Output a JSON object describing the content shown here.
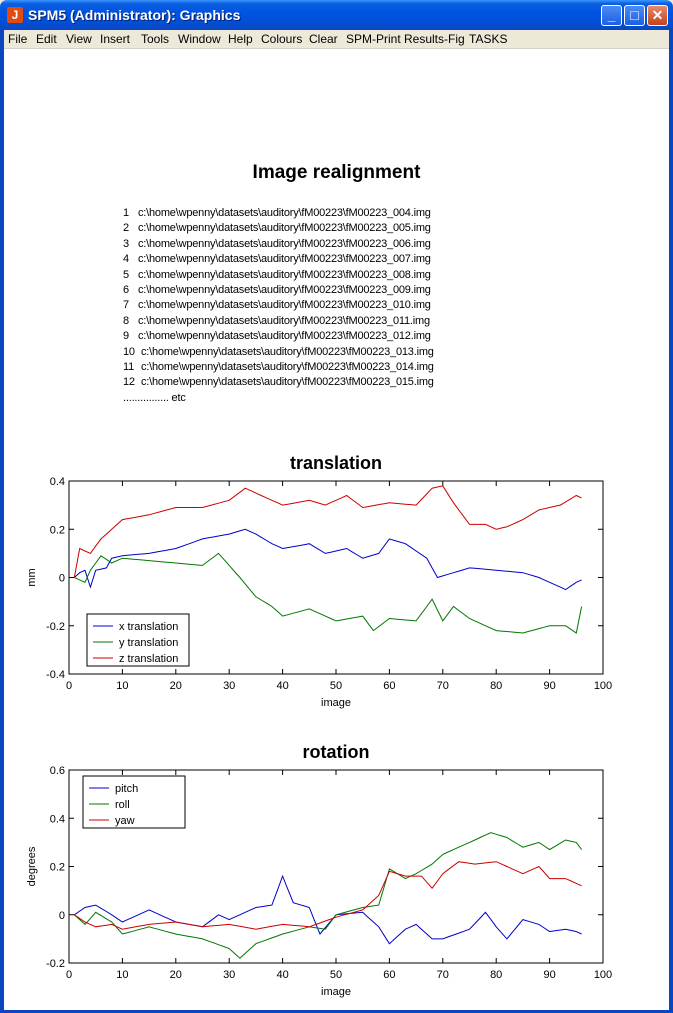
{
  "window": {
    "title": "SPM5 (Administrator): Graphics"
  },
  "menu": [
    "File",
    "Edit",
    "View",
    "Insert",
    "Tools",
    "Window",
    "Help",
    "Colours",
    "Clear",
    "SPM-Print",
    "Results-Fig",
    "TASKS"
  ],
  "page_title": "Image realignment",
  "files": [
    {
      "n": "1",
      "path": "c:\\home\\wpenny\\datasets\\auditory\\fM00223\\fM00223_004.img"
    },
    {
      "n": "2",
      "path": "c:\\home\\wpenny\\datasets\\auditory\\fM00223\\fM00223_005.img"
    },
    {
      "n": "3",
      "path": "c:\\home\\wpenny\\datasets\\auditory\\fM00223\\fM00223_006.img"
    },
    {
      "n": "4",
      "path": "c:\\home\\wpenny\\datasets\\auditory\\fM00223\\fM00223_007.img"
    },
    {
      "n": "5",
      "path": "c:\\home\\wpenny\\datasets\\auditory\\fM00223\\fM00223_008.img"
    },
    {
      "n": "6",
      "path": "c:\\home\\wpenny\\datasets\\auditory\\fM00223\\fM00223_009.img"
    },
    {
      "n": "7",
      "path": "c:\\home\\wpenny\\datasets\\auditory\\fM00223\\fM00223_010.img"
    },
    {
      "n": "8",
      "path": "c:\\home\\wpenny\\datasets\\auditory\\fM00223\\fM00223_011.img"
    },
    {
      "n": "9",
      "path": "c:\\home\\wpenny\\datasets\\auditory\\fM00223\\fM00223_012.img"
    },
    {
      "n": "10",
      "path": "c:\\home\\wpenny\\datasets\\auditory\\fM00223\\fM00223_013.img"
    },
    {
      "n": "11",
      "path": "c:\\home\\wpenny\\datasets\\auditory\\fM00223\\fM00223_014.img"
    },
    {
      "n": "12",
      "path": "c:\\home\\wpenny\\datasets\\auditory\\fM00223\\fM00223_015.img"
    }
  ],
  "files_more": "................ etc",
  "colors": {
    "blue": "#0000cc",
    "green": "#007700",
    "red": "#cc0000"
  },
  "chart_data": [
    {
      "type": "line",
      "title": "translation",
      "xlabel": "image",
      "ylabel": "mm",
      "xlim": [
        0,
        100
      ],
      "ylim": [
        -0.4,
        0.4
      ],
      "xticks": [
        0,
        10,
        20,
        30,
        40,
        50,
        60,
        70,
        80,
        90,
        100
      ],
      "yticks": [
        -0.4,
        -0.2,
        0,
        0.2,
        0.4
      ],
      "legend_position": "bottom-left",
      "series": [
        {
          "name": "x translation",
          "color": "#0000cc",
          "keypoints": [
            [
              1,
              0
            ],
            [
              2,
              0.02
            ],
            [
              3,
              0.03
            ],
            [
              4,
              -0.04
            ],
            [
              5,
              0.03
            ],
            [
              7,
              0.04
            ],
            [
              8,
              0.08
            ],
            [
              10,
              0.09
            ],
            [
              15,
              0.1
            ],
            [
              20,
              0.12
            ],
            [
              25,
              0.16
            ],
            [
              30,
              0.18
            ],
            [
              33,
              0.2
            ],
            [
              35,
              0.18
            ],
            [
              38,
              0.14
            ],
            [
              40,
              0.12
            ],
            [
              45,
              0.14
            ],
            [
              48,
              0.1
            ],
            [
              52,
              0.12
            ],
            [
              55,
              0.08
            ],
            [
              58,
              0.1
            ],
            [
              60,
              0.16
            ],
            [
              63,
              0.14
            ],
            [
              67,
              0.08
            ],
            [
              69,
              0.0
            ],
            [
              72,
              0.02
            ],
            [
              75,
              0.04
            ],
            [
              80,
              0.03
            ],
            [
              85,
              0.02
            ],
            [
              88,
              0.0
            ],
            [
              93,
              -0.05
            ],
            [
              95,
              -0.02
            ],
            [
              96,
              -0.01
            ]
          ]
        },
        {
          "name": "y translation",
          "color": "#007700",
          "keypoints": [
            [
              1,
              0
            ],
            [
              3,
              -0.02
            ],
            [
              4,
              0.03
            ],
            [
              6,
              0.09
            ],
            [
              8,
              0.06
            ],
            [
              10,
              0.08
            ],
            [
              15,
              0.07
            ],
            [
              20,
              0.06
            ],
            [
              25,
              0.05
            ],
            [
              28,
              0.1
            ],
            [
              30,
              0.05
            ],
            [
              32,
              0.0
            ],
            [
              35,
              -0.08
            ],
            [
              38,
              -0.12
            ],
            [
              40,
              -0.16
            ],
            [
              45,
              -0.13
            ],
            [
              50,
              -0.18
            ],
            [
              55,
              -0.16
            ],
            [
              57,
              -0.22
            ],
            [
              60,
              -0.17
            ],
            [
              65,
              -0.18
            ],
            [
              68,
              -0.09
            ],
            [
              70,
              -0.18
            ],
            [
              72,
              -0.12
            ],
            [
              75,
              -0.17
            ],
            [
              80,
              -0.22
            ],
            [
              85,
              -0.23
            ],
            [
              90,
              -0.2
            ],
            [
              93,
              -0.2
            ],
            [
              95,
              -0.23
            ],
            [
              96,
              -0.12
            ]
          ]
        },
        {
          "name": "z translation",
          "color": "#cc0000",
          "keypoints": [
            [
              1,
              0
            ],
            [
              2,
              0.12
            ],
            [
              4,
              0.1
            ],
            [
              6,
              0.16
            ],
            [
              8,
              0.2
            ],
            [
              10,
              0.24
            ],
            [
              15,
              0.26
            ],
            [
              20,
              0.29
            ],
            [
              25,
              0.29
            ],
            [
              30,
              0.32
            ],
            [
              33,
              0.37
            ],
            [
              36,
              0.34
            ],
            [
              40,
              0.3
            ],
            [
              45,
              0.32
            ],
            [
              48,
              0.3
            ],
            [
              52,
              0.34
            ],
            [
              55,
              0.29
            ],
            [
              60,
              0.31
            ],
            [
              65,
              0.3
            ],
            [
              68,
              0.37
            ],
            [
              70,
              0.38
            ],
            [
              72,
              0.31
            ],
            [
              75,
              0.22
            ],
            [
              78,
              0.22
            ],
            [
              80,
              0.2
            ],
            [
              82,
              0.21
            ],
            [
              85,
              0.24
            ],
            [
              88,
              0.28
            ],
            [
              92,
              0.3
            ],
            [
              95,
              0.34
            ],
            [
              96,
              0.33
            ]
          ]
        }
      ]
    },
    {
      "type": "line",
      "title": "rotation",
      "xlabel": "image",
      "ylabel": "degrees",
      "xlim": [
        0,
        100
      ],
      "ylim": [
        -0.2,
        0.6
      ],
      "xticks": [
        0,
        10,
        20,
        30,
        40,
        50,
        60,
        70,
        80,
        90,
        100
      ],
      "yticks": [
        -0.2,
        0,
        0.2,
        0.4,
        0.6
      ],
      "legend_position": "top-left",
      "series": [
        {
          "name": "pitch",
          "color": "#0000cc",
          "keypoints": [
            [
              1,
              0
            ],
            [
              3,
              0.03
            ],
            [
              5,
              0.04
            ],
            [
              8,
              0.0
            ],
            [
              10,
              -0.03
            ],
            [
              15,
              0.02
            ],
            [
              20,
              -0.03
            ],
            [
              25,
              -0.05
            ],
            [
              28,
              0.0
            ],
            [
              30,
              -0.02
            ],
            [
              35,
              0.03
            ],
            [
              38,
              0.04
            ],
            [
              40,
              0.16
            ],
            [
              42,
              0.05
            ],
            [
              45,
              0.03
            ],
            [
              47,
              -0.08
            ],
            [
              50,
              0.0
            ],
            [
              55,
              0.01
            ],
            [
              58,
              -0.05
            ],
            [
              60,
              -0.12
            ],
            [
              63,
              -0.06
            ],
            [
              65,
              -0.04
            ],
            [
              68,
              -0.1
            ],
            [
              70,
              -0.1
            ],
            [
              75,
              -0.06
            ],
            [
              78,
              0.01
            ],
            [
              80,
              -0.05
            ],
            [
              82,
              -0.1
            ],
            [
              85,
              -0.02
            ],
            [
              88,
              -0.04
            ],
            [
              90,
              -0.07
            ],
            [
              93,
              -0.06
            ],
            [
              95,
              -0.07
            ],
            [
              96,
              -0.08
            ]
          ]
        },
        {
          "name": "roll",
          "color": "#007700",
          "keypoints": [
            [
              1,
              0
            ],
            [
              3,
              -0.04
            ],
            [
              5,
              0.01
            ],
            [
              8,
              -0.03
            ],
            [
              10,
              -0.08
            ],
            [
              15,
              -0.05
            ],
            [
              20,
              -0.08
            ],
            [
              25,
              -0.1
            ],
            [
              30,
              -0.14
            ],
            [
              32,
              -0.18
            ],
            [
              35,
              -0.12
            ],
            [
              40,
              -0.08
            ],
            [
              45,
              -0.05
            ],
            [
              48,
              -0.06
            ],
            [
              50,
              0.0
            ],
            [
              55,
              0.03
            ],
            [
              58,
              0.04
            ],
            [
              60,
              0.19
            ],
            [
              63,
              0.15
            ],
            [
              65,
              0.17
            ],
            [
              68,
              0.21
            ],
            [
              70,
              0.25
            ],
            [
              73,
              0.28
            ],
            [
              77,
              0.32
            ],
            [
              79,
              0.34
            ],
            [
              82,
              0.32
            ],
            [
              85,
              0.28
            ],
            [
              88,
              0.3
            ],
            [
              90,
              0.27
            ],
            [
              93,
              0.31
            ],
            [
              95,
              0.3
            ],
            [
              96,
              0.27
            ]
          ]
        },
        {
          "name": "yaw",
          "color": "#cc0000",
          "keypoints": [
            [
              1,
              0
            ],
            [
              3,
              -0.03
            ],
            [
              5,
              -0.05
            ],
            [
              8,
              -0.04
            ],
            [
              10,
              -0.06
            ],
            [
              15,
              -0.04
            ],
            [
              20,
              -0.03
            ],
            [
              25,
              -0.05
            ],
            [
              30,
              -0.04
            ],
            [
              35,
              -0.06
            ],
            [
              40,
              -0.04
            ],
            [
              45,
              -0.05
            ],
            [
              50,
              -0.01
            ],
            [
              55,
              0.02
            ],
            [
              58,
              0.08
            ],
            [
              60,
              0.18
            ],
            [
              63,
              0.16
            ],
            [
              66,
              0.16
            ],
            [
              68,
              0.11
            ],
            [
              70,
              0.17
            ],
            [
              73,
              0.22
            ],
            [
              76,
              0.21
            ],
            [
              80,
              0.22
            ],
            [
              83,
              0.19
            ],
            [
              85,
              0.17
            ],
            [
              88,
              0.2
            ],
            [
              90,
              0.15
            ],
            [
              93,
              0.15
            ],
            [
              95,
              0.13
            ],
            [
              96,
              0.12
            ]
          ]
        }
      ]
    }
  ]
}
